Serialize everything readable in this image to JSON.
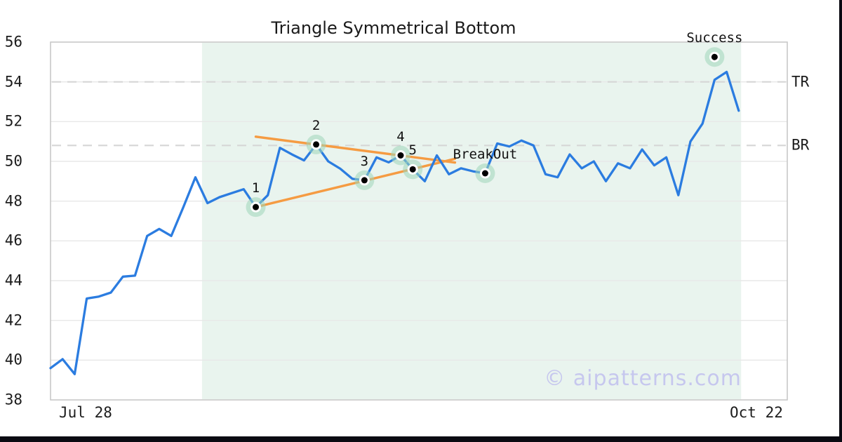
{
  "header": {
    "title": "Triangle Symmetrical Bottom"
  },
  "watermark": "© aipatterns.com",
  "chart_data": {
    "type": "line",
    "title": "Triangle Symmetrical Bottom",
    "xlabel": "",
    "ylabel": "",
    "x_tick_labels": [
      "Jul 28",
      "Oct 22"
    ],
    "ylim": [
      38,
      56
    ],
    "yticks": [
      56,
      54,
      52,
      50,
      48,
      46,
      44,
      42,
      40,
      38
    ],
    "grid": "horizontal",
    "legend": "none",
    "values": [
      39.6,
      40.05,
      39.3,
      43.1,
      43.2,
      43.4,
      44.2,
      44.25,
      46.25,
      46.6,
      46.25,
      47.7,
      49.2,
      47.9,
      48.2,
      48.4,
      48.6,
      47.7,
      48.3,
      50.68,
      50.35,
      50.05,
      50.85,
      50.0,
      49.63,
      49.12,
      49.05,
      50.2,
      49.95,
      50.3,
      49.6,
      49.0,
      50.3,
      49.35,
      49.65,
      49.5,
      49.4,
      50.9,
      50.75,
      51.05,
      50.8,
      49.35,
      49.2,
      50.35,
      49.65,
      50.0,
      49.0,
      49.9,
      49.65,
      50.6,
      49.8,
      50.2,
      48.3,
      51.0,
      51.9,
      54.1,
      54.5,
      52.55
    ],
    "levels": [
      {
        "label": "TR",
        "value": 54.0
      },
      {
        "label": "BR",
        "value": 50.8
      }
    ],
    "pattern_shade": {
      "from_index": 12.55,
      "to_index": 57.2
    },
    "trendlines": [
      {
        "name": "upper",
        "from_index": 17.0,
        "from_value": 51.24,
        "to_index": 33.5,
        "to_value": 49.94
      },
      {
        "name": "lower",
        "from_index": 17.0,
        "from_value": 47.7,
        "to_index": 33.5,
        "to_value": 50.13
      }
    ],
    "markers": [
      {
        "label": "1",
        "index": 17,
        "value": 47.7
      },
      {
        "label": "2",
        "index": 22,
        "value": 50.85
      },
      {
        "label": "3",
        "index": 26,
        "value": 49.05
      },
      {
        "label": "4",
        "index": 29,
        "value": 50.3
      },
      {
        "label": "5",
        "index": 30,
        "value": 49.6
      },
      {
        "label": "BreakOut",
        "index": 36,
        "value": 49.4
      },
      {
        "label": "Success",
        "index": 55,
        "value": 55.25,
        "floating": true
      }
    ],
    "colors": {
      "line": "#2b7ce0",
      "trendline": "#f59b42",
      "marker_halo": "#9fd6ba",
      "marker_ring": "#ffffff",
      "marker_dot": "#000000",
      "shade": "#e9f4ee",
      "dashed": "#d6d6d6",
      "grid": "#e8e8e8",
      "frame": "#c8c8c8",
      "text": "#1c1c1c",
      "watermark": "#c5c5ef",
      "edge": "#0a0a12"
    }
  }
}
